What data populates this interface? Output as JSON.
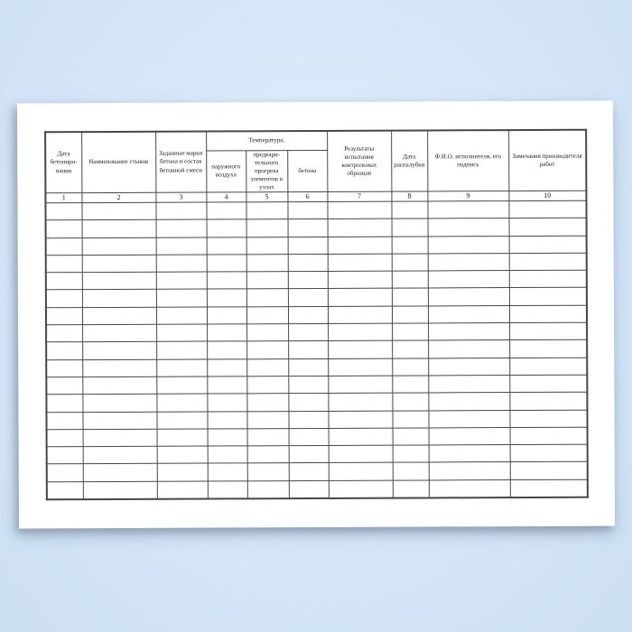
{
  "table": {
    "temperature_group_label": "Температура,",
    "columns": [
      {
        "number": "1",
        "label": "Дата бетониро- вания"
      },
      {
        "number": "2",
        "label": "Наименование стыков"
      },
      {
        "number": "3",
        "label": "Заданные марки бетона и состав бетонной смеси"
      },
      {
        "number": "4",
        "label": "наружного воздуха"
      },
      {
        "number": "5",
        "label": "предвари- тельного прогрева элементов в узлах"
      },
      {
        "number": "6",
        "label": "бетона"
      },
      {
        "number": "7",
        "label": "Результаты испытания контрольных образцов"
      },
      {
        "number": "8",
        "label": "Дата распалубки"
      },
      {
        "number": "9",
        "label": "Ф.И.О. исполнителя, его подпись"
      },
      {
        "number": "10",
        "label": "Замечания производителя работ"
      }
    ],
    "empty_row_count": 17
  },
  "colors": {
    "background_blue": "#d7e8fa",
    "paper": "#ffffff",
    "grid_line": "#474747",
    "text": "#1a1a1a"
  }
}
